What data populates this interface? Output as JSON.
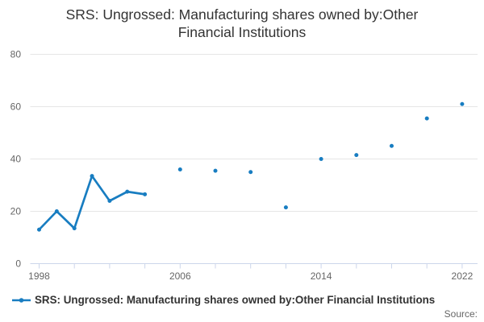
{
  "title": {
    "line1": "SRS: Ungrossed: Manufacturing shares owned by:Other",
    "line2": "Financial Institutions"
  },
  "legend": {
    "label": "SRS: Ungrossed: Manufacturing shares owned by:Other Financial Institutions"
  },
  "source": {
    "label": "Source:"
  },
  "colors": {
    "series": "#187dc1",
    "grid": "#e6e6e6",
    "axis": "#ccd6eb",
    "axis_label": "#666666",
    "text": "#333333"
  },
  "chart_data": {
    "type": "line",
    "title": "SRS: Ungrossed: Manufacturing shares owned by:Other Financial Institutions",
    "xlabel": "",
    "ylabel": "",
    "series": [
      {
        "name": "SRS: Ungrossed: Manufacturing shares owned by:Other Financial Institutions",
        "points": [
          {
            "x": 1998,
            "y": 13
          },
          {
            "x": 1999,
            "y": 20
          },
          {
            "x": 2000,
            "y": 13.5
          },
          {
            "x": 2001,
            "y": 33.5
          },
          {
            "x": 2002,
            "y": 24
          },
          {
            "x": 2003,
            "y": 27.5
          },
          {
            "x": 2004,
            "y": 26.5
          },
          {
            "x": 2006,
            "y": 36
          },
          {
            "x": 2008,
            "y": 35.5
          },
          {
            "x": 2010,
            "y": 35
          },
          {
            "x": 2012,
            "y": 21.5
          },
          {
            "x": 2014,
            "y": 40
          },
          {
            "x": 2016,
            "y": 41.5
          },
          {
            "x": 2018,
            "y": 45
          },
          {
            "x": 2020,
            "y": 55.5
          },
          {
            "x": 2022,
            "y": 61
          }
        ]
      }
    ],
    "connect_rule": "only points in consecutive years are joined by the line; biennial points 2006-2022 appear as isolated markers",
    "y_ticks": [
      0,
      20,
      40,
      60,
      80
    ],
    "x_ticks": [
      1998,
      2000,
      2002,
      2004,
      2006,
      2008,
      2010,
      2012,
      2014,
      2016,
      2018,
      2020,
      2022
    ],
    "x_labeled_ticks": [
      1998,
      2006,
      2014,
      2022
    ],
    "ylim": [
      0,
      80
    ],
    "xlim": [
      1997.5,
      2022.9
    ],
    "grid": "horizontal-only",
    "legend_position": "bottom-left",
    "marker": "circle"
  }
}
